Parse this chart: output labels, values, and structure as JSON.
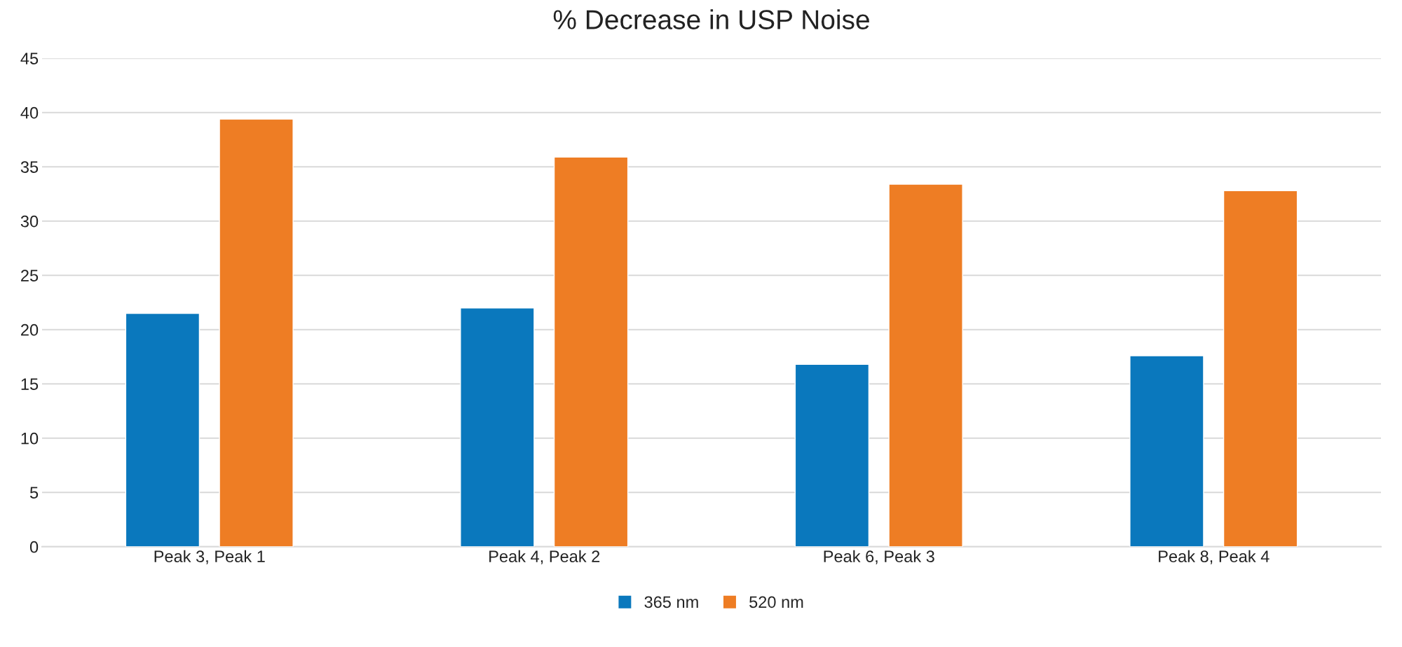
{
  "chart_data": {
    "type": "bar",
    "title": "% Decrease in USP Noise",
    "categories": [
      "Peak 3, Peak 1",
      "Peak 4, Peak 2",
      "Peak 6, Peak 3",
      "Peak 8, Peak 4"
    ],
    "series": [
      {
        "name": "365 nm",
        "color": "#0a78bd",
        "values": [
          21.5,
          22.0,
          16.8,
          17.6
        ]
      },
      {
        "name": "520 nm",
        "color": "#ee7d24",
        "values": [
          39.4,
          35.9,
          33.4,
          32.8
        ]
      }
    ],
    "ylim": [
      0,
      45
    ],
    "yticks": [
      0,
      5,
      10,
      15,
      20,
      25,
      30,
      35,
      40,
      45
    ],
    "grid": "y",
    "legend": "bottom"
  }
}
